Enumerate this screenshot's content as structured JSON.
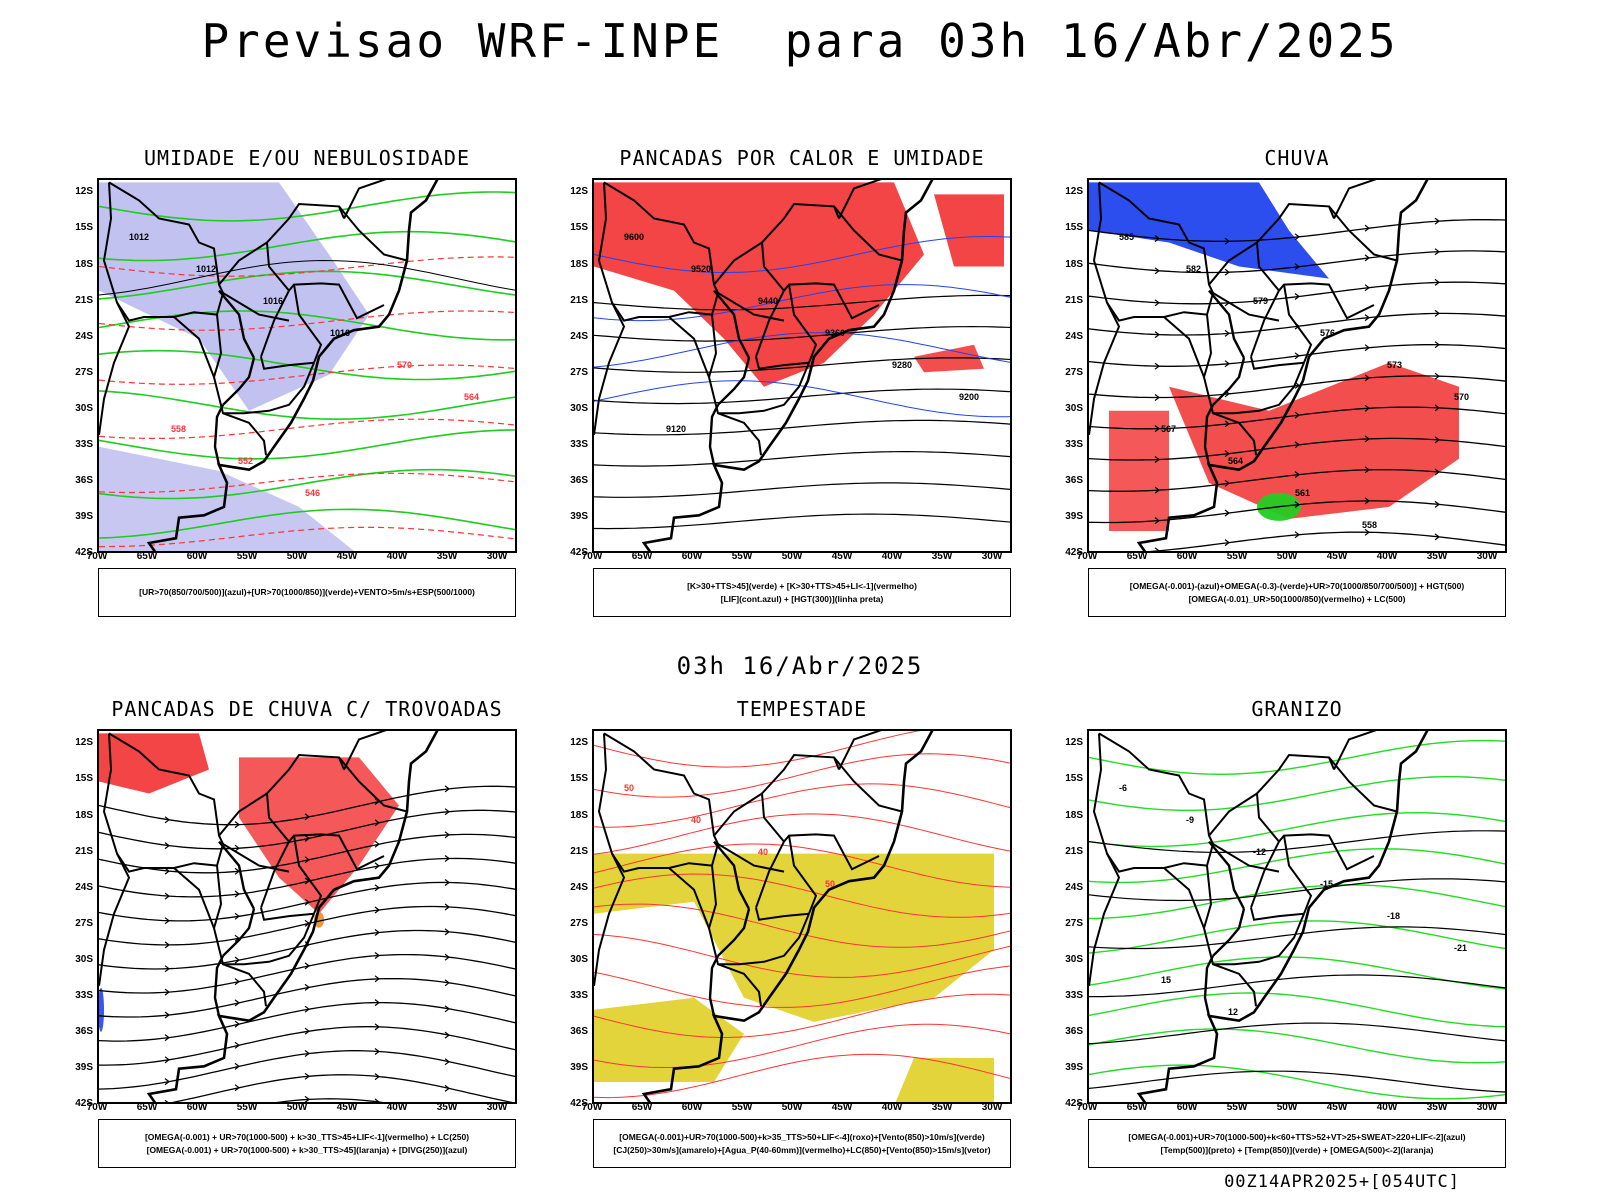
{
  "title": "Previsao WRF-INPE  para 03h 16/Abr/2025",
  "subtitle": "03h 16/Abr/2025",
  "footer": "00Z14APR2025+[054UTC]",
  "lat_ticks": [
    "12S",
    "15S",
    "18S",
    "21S",
    "24S",
    "27S",
    "30S",
    "33S",
    "36S",
    "39S",
    "42S"
  ],
  "lon_ticks": [
    "70W",
    "65W",
    "60W",
    "55W",
    "50W",
    "45W",
    "40W",
    "35W",
    "30W"
  ],
  "panels": [
    {
      "id": "umidade",
      "title": "UMIDADE E/OU NEBULOSIDADE",
      "legend_lines": [
        "[UR>70(850/700/500)](azul)+[UR>70(1000/850)](verde)+VENTO>5m/s+ESP(500/1000)"
      ],
      "contour_labels": [
        "1012",
        "1012",
        "1016",
        "1016",
        "570",
        "564",
        "558",
        "552",
        "546"
      ]
    },
    {
      "id": "pancadas_calor",
      "title": "PANCADAS POR CALOR E UMIDADE",
      "legend_lines": [
        "[K>30+TTS>45](verde) + [K>30+TTS>45+LI<-1](vermelho)",
        "[LIF](cont.azul) + [HGT(300)](linha preta)"
      ],
      "contour_labels": [
        "9600",
        "9520",
        "9440",
        "9360",
        "9280",
        "9200",
        "9120"
      ]
    },
    {
      "id": "chuva",
      "title": "CHUVA",
      "legend_lines": [
        "[OMEGA(-0.001)-(azul)+OMEGA(-0.3)-(verde)+UR>70(1000/850/700/500)] + HGT(500)",
        "[OMEGA(-0.01)_UR>50(1000/850)(vermelho) + LC(500)"
      ],
      "contour_labels": [
        "585",
        "582",
        "579",
        "576",
        "573",
        "570",
        "567",
        "564",
        "561",
        "558"
      ]
    },
    {
      "id": "pancadas_trovoadas",
      "title": "PANCADAS DE CHUVA C/ TROVOADAS",
      "legend_lines": [
        "[OMEGA(-0.001) + UR>70(1000-500) + k>30_TTS>45+LIF<-1](vermelho) + LC(250)",
        "[OMEGA(-0.001) + UR>70(1000-500) + k>30_TTS>45](laranja) + [DIVG(250)](azul)"
      ],
      "contour_labels": []
    },
    {
      "id": "tempestade",
      "title": "TEMPESTADE",
      "legend_lines": [
        "[OMEGA(-0.001)+UR>70(1000-500)+k>35_TTS>50+LIF<-4](roxo)+[Vento(850)>10m/s](verde)",
        "[CJ(250)>30m/s](amarelo)+[Agua_P(40-60mm)](vermelho)+LC(850)+[Vento(850)>15m/s](vetor)"
      ],
      "contour_labels": [
        "50",
        "40",
        "40",
        "50"
      ]
    },
    {
      "id": "granizo",
      "title": "GRANIZO",
      "legend_lines": [
        "[OMEGA(-0.001)+UR>70(1000-500)+k<60+TTS>52+VT>25+SWEAT>220+LIF<-2](azul)",
        "[Temp(500)](preto) + [Temp(850)](verde) + [OMEGA(500)<-2](laranja)"
      ],
      "contour_labels": [
        "-6",
        "-9",
        "-12",
        "-15",
        "-18",
        "-21",
        "15",
        "12"
      ]
    }
  ]
}
